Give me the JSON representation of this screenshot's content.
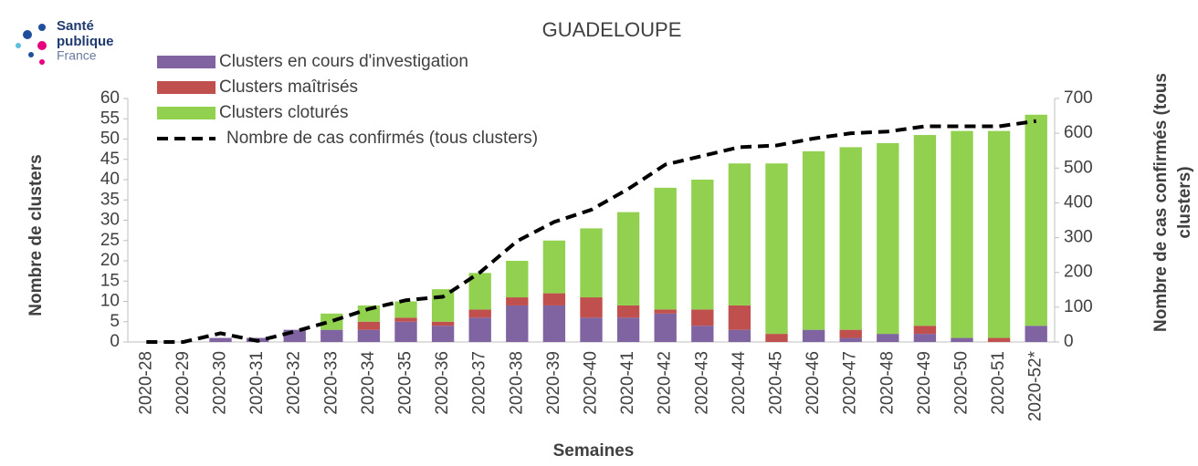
{
  "logo": {
    "lines": [
      "Santé",
      "publique",
      "France"
    ]
  },
  "chart_data": {
    "type": "bar",
    "stacked": true,
    "title": "GUADELOUPE",
    "xlabel": "Semaines",
    "ylabel": "Nombre de clusters",
    "y2label": [
      "Nombre de cas confirmés (tous",
      "clusters)"
    ],
    "categories": [
      "2020-28",
      "2020-29",
      "2020-30",
      "2020-31",
      "2020-32",
      "2020-33",
      "2020-34",
      "2020-35",
      "2020-36",
      "2020-37",
      "2020-38",
      "2020-39",
      "2020-40",
      "2020-41",
      "2020-42",
      "2020-43",
      "2020-44",
      "2020-45",
      "2020-46",
      "2020-47",
      "2020-48",
      "2020-49",
      "2020-50",
      "2020-51",
      "2020-52*"
    ],
    "series": [
      {
        "name": "Clusters en cours d'investigation",
        "color": "#8064a2",
        "values": [
          0,
          0,
          1,
          1,
          3,
          3,
          3,
          5,
          4,
          6,
          9,
          9,
          6,
          6,
          7,
          4,
          3,
          0,
          3,
          1,
          2,
          2,
          1,
          0,
          4
        ]
      },
      {
        "name": "Clusters maîtrisés",
        "color": "#c0504d",
        "values": [
          0,
          0,
          0,
          0,
          0,
          0,
          2,
          1,
          1,
          2,
          2,
          3,
          5,
          3,
          1,
          4,
          6,
          2,
          0,
          2,
          0,
          2,
          0,
          1,
          0
        ]
      },
      {
        "name": "Clusters cloturés",
        "color": "#92d050",
        "values": [
          0,
          0,
          0,
          0,
          0,
          4,
          4,
          4,
          8,
          9,
          9,
          13,
          17,
          23,
          30,
          32,
          35,
          42,
          44,
          45,
          47,
          47,
          51,
          51,
          52
        ]
      },
      {
        "name": "Nombre de cas confirmés (tous clusters)",
        "type": "line",
        "axis": "y2",
        "color": "#000000",
        "dashed": true,
        "values": [
          0,
          0,
          25,
          3,
          30,
          60,
          95,
          120,
          130,
          200,
          290,
          345,
          380,
          440,
          510,
          535,
          560,
          565,
          585,
          600,
          605,
          620,
          620,
          620,
          635
        ]
      }
    ],
    "ylim": [
      0,
      60
    ],
    "yticks": [
      0,
      5,
      10,
      15,
      20,
      25,
      30,
      35,
      40,
      45,
      50,
      55,
      60
    ],
    "y2lim": [
      0,
      700
    ],
    "y2ticks": [
      0,
      100,
      200,
      300,
      400,
      500,
      600,
      700
    ]
  }
}
